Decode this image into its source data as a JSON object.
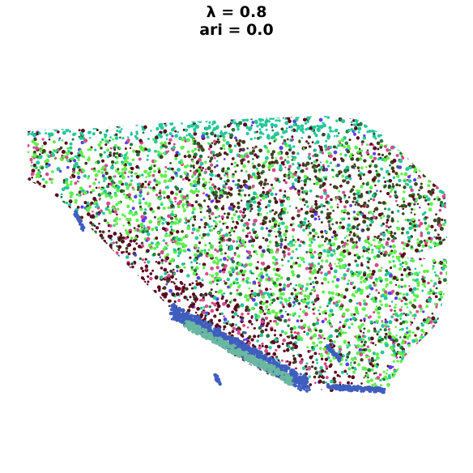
{
  "chart_data": {
    "type": "scatter",
    "title_line1": "λ = 0.8",
    "title_line2": "ari = 0.0",
    "xlabel": "",
    "ylabel": "",
    "axes": "off",
    "grid": false,
    "legend": "none",
    "colors": {
      "dark_maroon": "#5a0a1e",
      "bright_green": "#5ef04a",
      "teal_green": "#24c89a",
      "olive_dark": "#3e421e",
      "pink": "#d64a8c",
      "blue": "#3f5fbf",
      "seafoam": "#6ab8a0",
      "violet": "#5b3cf0",
      "forest": "#1f7a3c"
    }
  }
}
